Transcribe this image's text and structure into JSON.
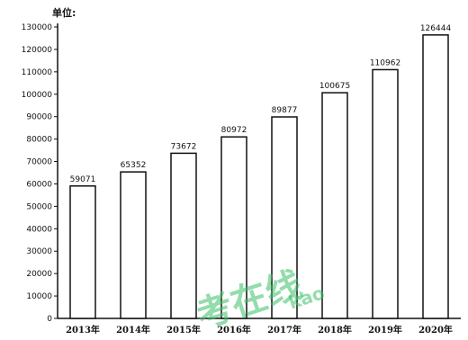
{
  "chart_data": {
    "type": "bar",
    "unit_label": "单位:",
    "categories": [
      "2013年",
      "2014年",
      "2015年",
      "2016年",
      "2017年",
      "2018年",
      "2019年",
      "2020年"
    ],
    "values": [
      59071,
      65352,
      73672,
      80972,
      89877,
      100675,
      110962,
      126444
    ],
    "data_labels": [
      "59071",
      "65352",
      "73672",
      "80972",
      "89877",
      "100675",
      "110962",
      "126444"
    ],
    "ylim": [
      0,
      130000
    ],
    "yticks": [
      0,
      10000,
      20000,
      30000,
      40000,
      50000,
      60000,
      70000,
      80000,
      90000,
      100000,
      110000,
      120000,
      130000
    ],
    "ytick_labels": [
      "0",
      "10000",
      "20000",
      "30000",
      "40000",
      "50000",
      "60000",
      "70000",
      "80000",
      "90000",
      "100000",
      "110000",
      "120000",
      "130000"
    ],
    "grid": false,
    "bar_fill": "#ffffff",
    "bar_stroke": "#111111"
  },
  "watermark": {
    "text": "考在线",
    "subtext": "kao"
  }
}
